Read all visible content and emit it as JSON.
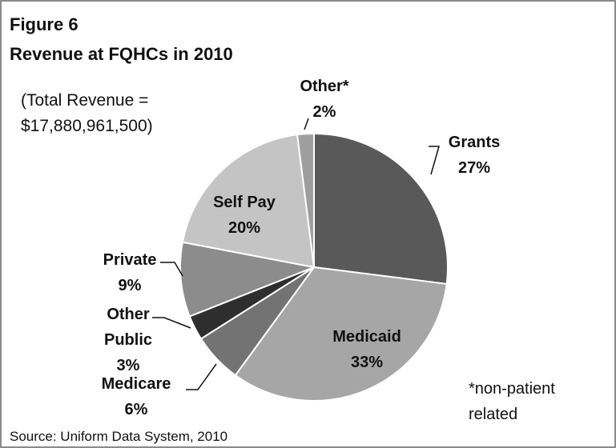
{
  "chart_data": {
    "type": "pie",
    "title": "Figure 6",
    "subtitle": "Revenue at FQHCs in 2010",
    "annotation": "(Total Revenue = $17,880,961,500)",
    "note": "*non-patient related",
    "source": "Source: Uniform Data System, 2010",
    "categories": [
      "Grants",
      "Medicaid",
      "Medicare",
      "Other Public",
      "Private",
      "Self Pay",
      "Other*"
    ],
    "values": [
      27,
      33,
      6,
      3,
      9,
      20,
      2
    ],
    "value_labels": [
      "27%",
      "33%",
      "6%",
      "3%",
      "9%",
      "20%",
      "2%"
    ],
    "colors": [
      "#595959",
      "#a6a6a6",
      "#737373",
      "#2e2e2e",
      "#8c8c8c",
      "#c4c4c4",
      "#9e9e9e"
    ]
  }
}
